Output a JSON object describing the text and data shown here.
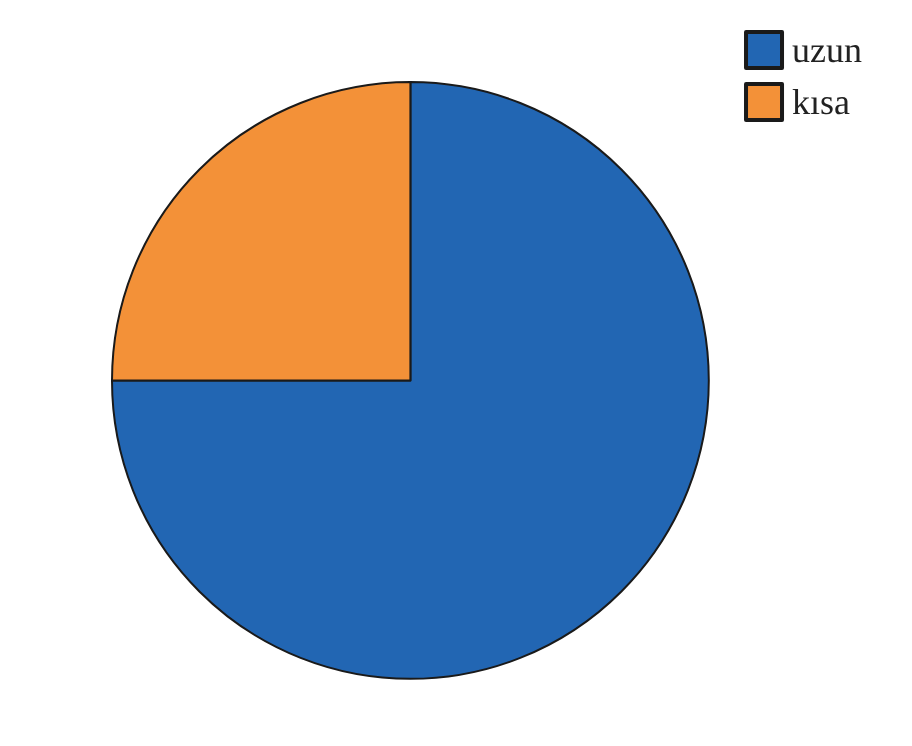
{
  "chart_data": {
    "type": "pie",
    "categories": [
      "uzun",
      "kısa"
    ],
    "values": [
      75,
      25
    ],
    "colors": [
      "#2266b3",
      "#f39138"
    ],
    "legend": "top right"
  }
}
